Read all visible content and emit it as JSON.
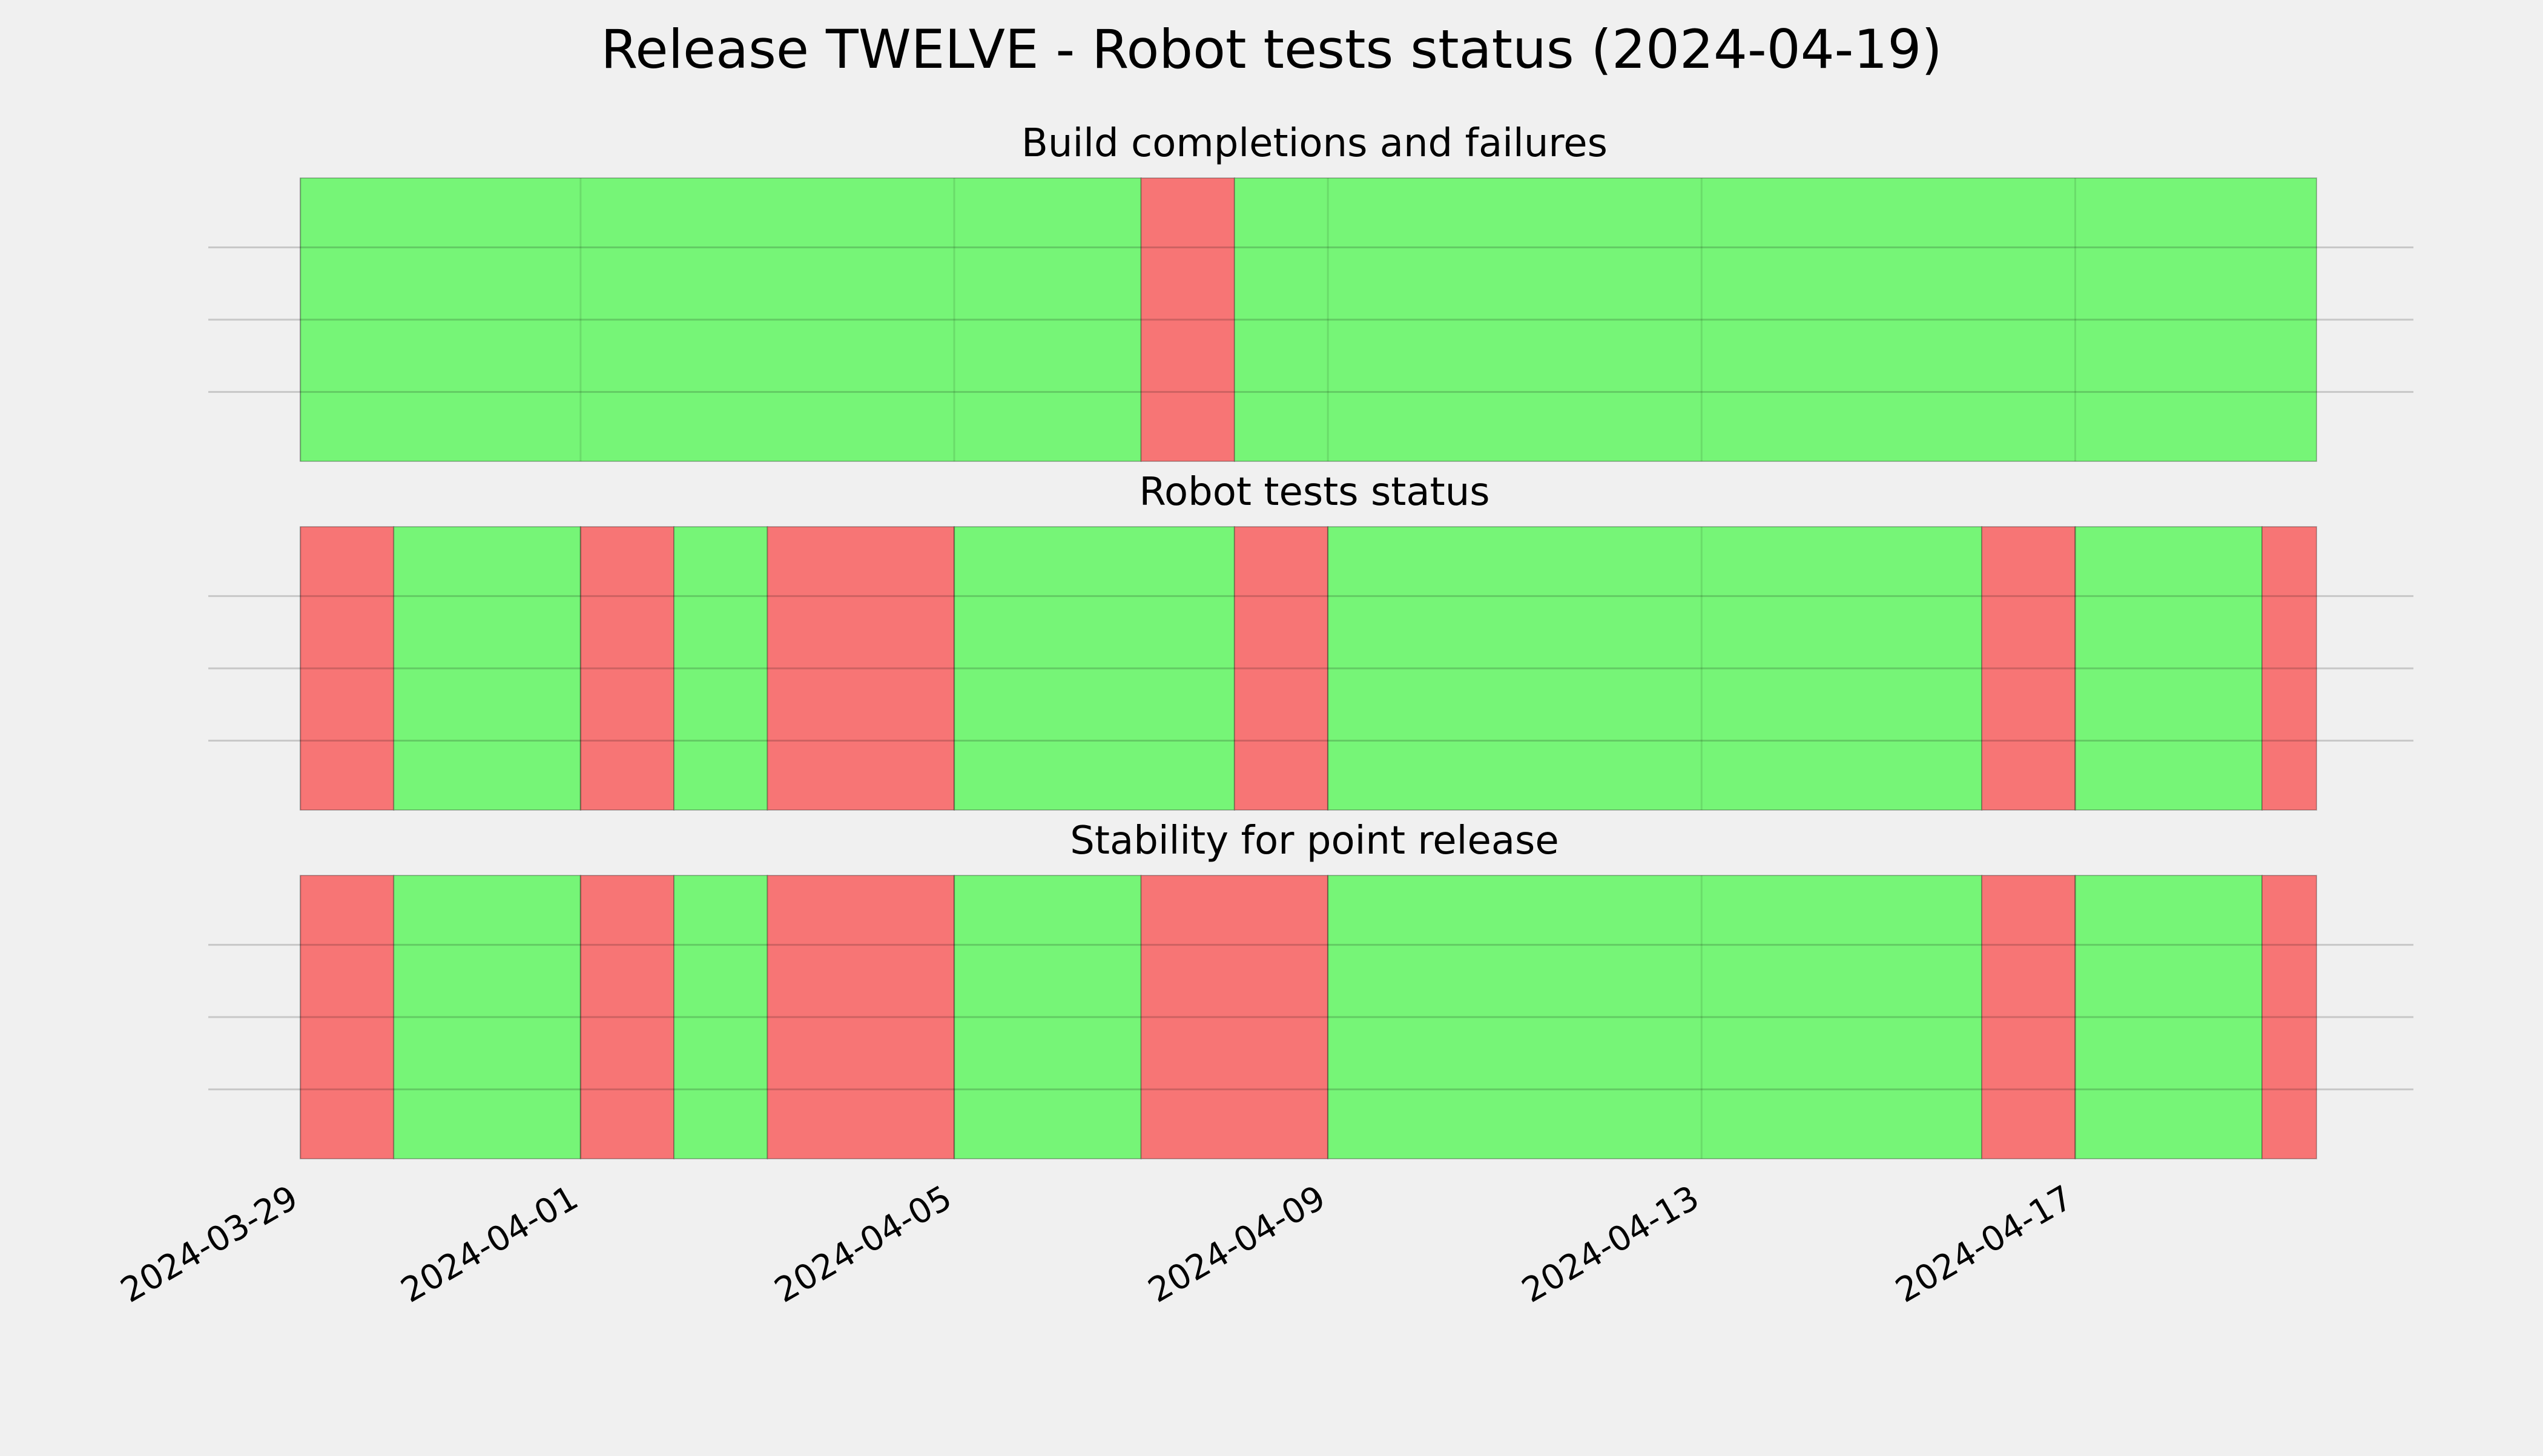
{
  "chart_data": {
    "type": "timeline",
    "title": "Release TWELVE - Robot tests status (2024-04-19)",
    "x_range": [
      "2024-03-29",
      "2024-04-19"
    ],
    "x_ticks": [
      "2024-03-29",
      "2024-04-01",
      "2024-04-05",
      "2024-04-09",
      "2024-04-13",
      "2024-04-17"
    ],
    "colors": {
      "pass": "#76f577",
      "fail": "#f77575"
    },
    "grid": true,
    "panels": [
      {
        "title": "Build completions and failures",
        "segments": [
          {
            "start": "2024-03-29T00:00",
            "end": "2024-04-07T00:00",
            "status": "pass"
          },
          {
            "start": "2024-04-07T00:00",
            "end": "2024-04-08T00:00",
            "status": "fail"
          },
          {
            "start": "2024-04-08T00:00",
            "end": "2024-04-19T14:00",
            "status": "pass"
          }
        ]
      },
      {
        "title": "Robot tests status",
        "segments": [
          {
            "start": "2024-03-29T00:00",
            "end": "2024-03-30T00:00",
            "status": "fail"
          },
          {
            "start": "2024-03-30T00:00",
            "end": "2024-04-01T00:00",
            "status": "pass"
          },
          {
            "start": "2024-04-01T00:00",
            "end": "2024-04-02T00:00",
            "status": "fail"
          },
          {
            "start": "2024-04-02T00:00",
            "end": "2024-04-03T00:00",
            "status": "pass"
          },
          {
            "start": "2024-04-03T00:00",
            "end": "2024-04-05T00:00",
            "status": "fail"
          },
          {
            "start": "2024-04-05T00:00",
            "end": "2024-04-08T00:00",
            "status": "pass"
          },
          {
            "start": "2024-04-08T00:00",
            "end": "2024-04-09T00:00",
            "status": "fail"
          },
          {
            "start": "2024-04-09T00:00",
            "end": "2024-04-16T00:00",
            "status": "pass"
          },
          {
            "start": "2024-04-16T00:00",
            "end": "2024-04-17T00:00",
            "status": "fail"
          },
          {
            "start": "2024-04-17T00:00",
            "end": "2024-04-19T00:00",
            "status": "pass"
          },
          {
            "start": "2024-04-19T00:00",
            "end": "2024-04-19T14:00",
            "status": "fail"
          }
        ]
      },
      {
        "title": "Stability for point release",
        "segments": [
          {
            "start": "2024-03-29T00:00",
            "end": "2024-03-30T00:00",
            "status": "fail"
          },
          {
            "start": "2024-03-30T00:00",
            "end": "2024-04-01T00:00",
            "status": "pass"
          },
          {
            "start": "2024-04-01T00:00",
            "end": "2024-04-02T00:00",
            "status": "fail"
          },
          {
            "start": "2024-04-02T00:00",
            "end": "2024-04-03T00:00",
            "status": "pass"
          },
          {
            "start": "2024-04-03T00:00",
            "end": "2024-04-05T00:00",
            "status": "fail"
          },
          {
            "start": "2024-04-05T00:00",
            "end": "2024-04-07T00:00",
            "status": "pass"
          },
          {
            "start": "2024-04-07T00:00",
            "end": "2024-04-09T00:00",
            "status": "fail"
          },
          {
            "start": "2024-04-09T00:00",
            "end": "2024-04-16T00:00",
            "status": "pass"
          },
          {
            "start": "2024-04-16T00:00",
            "end": "2024-04-17T00:00",
            "status": "fail"
          },
          {
            "start": "2024-04-17T00:00",
            "end": "2024-04-19T00:00",
            "status": "pass"
          },
          {
            "start": "2024-04-19T00:00",
            "end": "2024-04-19T14:00",
            "status": "fail"
          }
        ]
      }
    ]
  }
}
